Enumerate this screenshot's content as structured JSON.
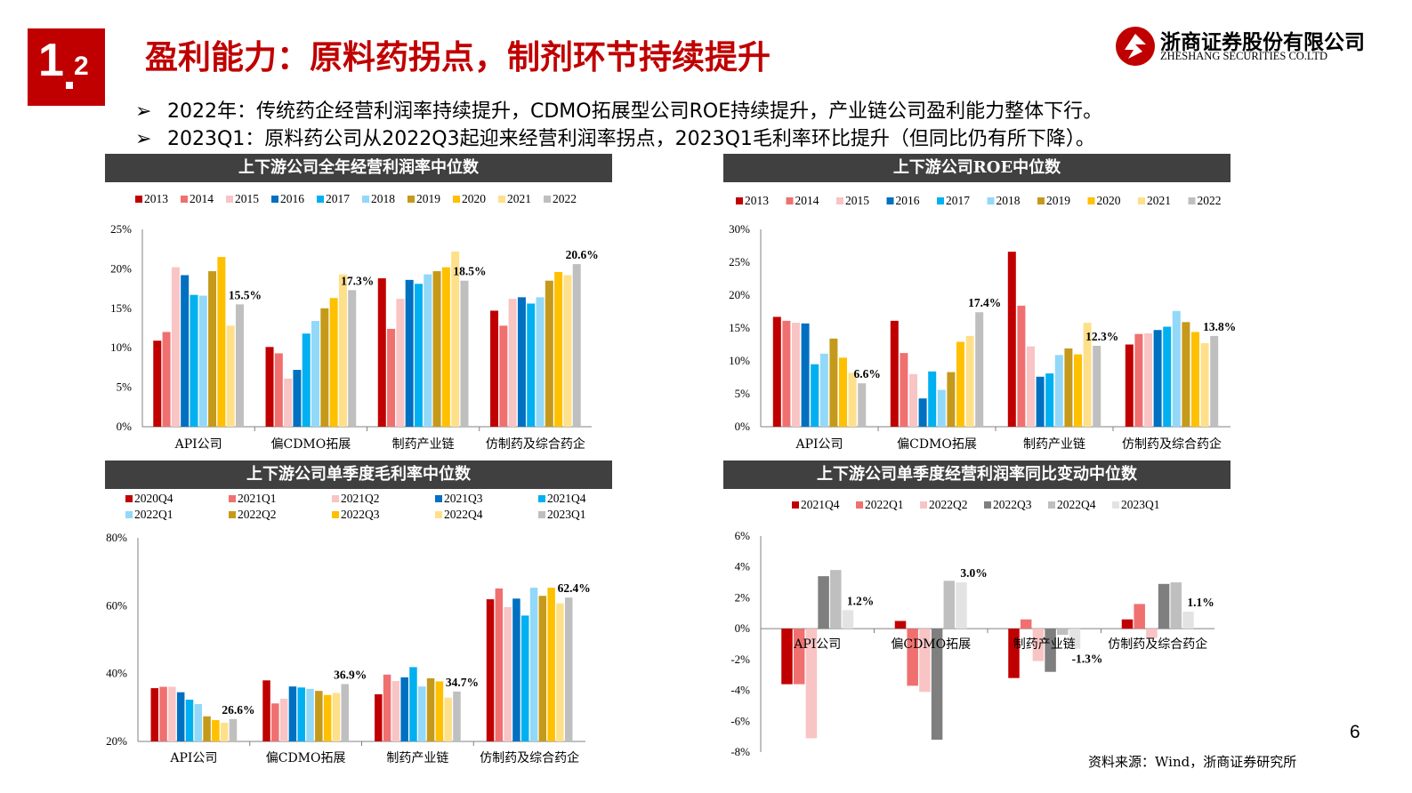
{
  "header": {
    "section_major": "1",
    "section_minor": "2",
    "title": "盈利能力：原料药拐点，制剂环节持续提升",
    "company_cn": "浙商证券股份有限公司",
    "company_en": "ZHESHANG SECURITIES CO.LTD"
  },
  "bullets": [
    "2022年：传统药企经营利润率持续提升，CDMO拓展型公司ROE持续提升，产业链公司盈利能力整体下行。",
    "2023Q1：原料药公司从2022Q3起迎来经营利润率拐点，2023Q1毛利率环比提升（但同比仍有所下降）。"
  ],
  "bullet_marker": "➢",
  "source": "资料来源：Wind，浙商证券研究所",
  "page_number": "6",
  "chart_data": [
    {
      "id": "op_margin",
      "type": "bar",
      "title": "上下游公司全年经营利润率中位数",
      "categories": [
        "API公司",
        "偏CDMO拓展",
        "制药产业链",
        "仿制药及综合药企"
      ],
      "ylim": [
        0,
        25
      ],
      "yticks": [
        0,
        5,
        10,
        15,
        20,
        25
      ],
      "ytick_labels": [
        "0%",
        "5%",
        "10%",
        "15%",
        "20%",
        "25%"
      ],
      "legend_position": "top",
      "legend_columns": 10,
      "series": [
        {
          "name": "2013",
          "color": "#c00000",
          "values": [
            10.9,
            10.1,
            18.8,
            14.7
          ]
        },
        {
          "name": "2014",
          "color": "#f07070",
          "values": [
            12.0,
            9.3,
            12.4,
            12.8
          ]
        },
        {
          "name": "2015",
          "color": "#f9c4c4",
          "values": [
            20.2,
            6.1,
            16.2,
            16.2
          ]
        },
        {
          "name": "2016",
          "color": "#0070c0",
          "values": [
            19.2,
            7.2,
            18.6,
            16.4
          ]
        },
        {
          "name": "2017",
          "color": "#00b0f0",
          "values": [
            16.7,
            11.8,
            18.1,
            15.6
          ]
        },
        {
          "name": "2018",
          "color": "#92d8f8",
          "values": [
            16.6,
            13.4,
            19.3,
            16.4
          ]
        },
        {
          "name": "2019",
          "color": "#c59a1a",
          "values": [
            19.7,
            15.0,
            19.7,
            18.5
          ]
        },
        {
          "name": "2020",
          "color": "#ffc000",
          "values": [
            21.5,
            16.3,
            20.2,
            19.6
          ]
        },
        {
          "name": "2021",
          "color": "#ffe08a",
          "values": [
            12.8,
            19.3,
            22.2,
            19.2
          ]
        },
        {
          "name": "2022",
          "color": "#bfbfbf",
          "values": [
            15.5,
            17.3,
            18.5,
            20.6
          ]
        }
      ],
      "annotations": [
        "15.5%",
        "17.3%",
        "18.5%",
        "20.6%"
      ]
    },
    {
      "id": "roe",
      "type": "bar",
      "title": "上下游公司ROE中位数",
      "categories": [
        "API公司",
        "偏CDMO拓展",
        "制药产业链",
        "仿制药及综合药企"
      ],
      "ylim": [
        0,
        30
      ],
      "yticks": [
        0,
        5,
        10,
        15,
        20,
        25,
        30
      ],
      "ytick_labels": [
        "0%",
        "5%",
        "10%",
        "15%",
        "20%",
        "25%",
        "30%"
      ],
      "legend_position": "top",
      "legend_columns": 10,
      "series": [
        {
          "name": "2013",
          "color": "#c00000",
          "values": [
            16.7,
            16.1,
            26.6,
            12.5
          ]
        },
        {
          "name": "2014",
          "color": "#f07070",
          "values": [
            16.1,
            11.2,
            18.4,
            14.1
          ]
        },
        {
          "name": "2015",
          "color": "#f9c4c4",
          "values": [
            15.8,
            8.0,
            12.2,
            14.2
          ]
        },
        {
          "name": "2016",
          "color": "#0070c0",
          "values": [
            15.7,
            4.3,
            7.6,
            14.7
          ]
        },
        {
          "name": "2017",
          "color": "#00b0f0",
          "values": [
            9.5,
            8.4,
            8.1,
            15.2
          ]
        },
        {
          "name": "2018",
          "color": "#92d8f8",
          "values": [
            11.1,
            5.6,
            10.9,
            17.6
          ]
        },
        {
          "name": "2019",
          "color": "#c59a1a",
          "values": [
            13.4,
            8.3,
            11.9,
            15.9
          ]
        },
        {
          "name": "2020",
          "color": "#ffc000",
          "values": [
            10.5,
            12.9,
            11.0,
            14.4
          ]
        },
        {
          "name": "2021",
          "color": "#ffe08a",
          "values": [
            8.2,
            13.8,
            15.8,
            12.7
          ]
        },
        {
          "name": "2022",
          "color": "#bfbfbf",
          "values": [
            6.6,
            17.4,
            12.3,
            13.8
          ]
        }
      ],
      "annotations": [
        "6.6%",
        "17.4%",
        "12.3%",
        "13.8%"
      ]
    },
    {
      "id": "gross_margin_q",
      "type": "bar",
      "title": "上下游公司单季度毛利率中位数",
      "categories": [
        "API公司",
        "偏CDMO拓展",
        "制药产业链",
        "仿制药及综合药企"
      ],
      "ylim": [
        20,
        80
      ],
      "yticks": [
        20,
        40,
        60,
        80
      ],
      "ytick_labels": [
        "20%",
        "40%",
        "60%",
        "80%"
      ],
      "legend_position": "top",
      "legend_columns": 5,
      "series": [
        {
          "name": "2020Q4",
          "color": "#c00000",
          "values": [
            35.7,
            38.0,
            33.9,
            61.9
          ]
        },
        {
          "name": "2021Q1",
          "color": "#f07070",
          "values": [
            36.1,
            31.2,
            39.7,
            65.1
          ]
        },
        {
          "name": "2021Q2",
          "color": "#f9c4c4",
          "values": [
            36.1,
            32.6,
            37.8,
            59.6
          ]
        },
        {
          "name": "2021Q3",
          "color": "#0070c0",
          "values": [
            34.5,
            36.2,
            38.9,
            62.1
          ]
        },
        {
          "name": "2021Q4",
          "color": "#00b0f0",
          "values": [
            32.3,
            35.9,
            41.9,
            57.1
          ]
        },
        {
          "name": "2022Q1",
          "color": "#92d8f8",
          "values": [
            31.0,
            35.5,
            36.2,
            65.3
          ]
        },
        {
          "name": "2022Q2",
          "color": "#c59a1a",
          "values": [
            27.4,
            34.9,
            38.6,
            62.9
          ]
        },
        {
          "name": "2022Q3",
          "color": "#ffc000",
          "values": [
            26.3,
            33.7,
            37.7,
            65.3
          ]
        },
        {
          "name": "2022Q4",
          "color": "#ffe08a",
          "values": [
            25.5,
            34.3,
            32.9,
            60.7
          ]
        },
        {
          "name": "2023Q1",
          "color": "#bfbfbf",
          "values": [
            26.6,
            36.9,
            34.7,
            62.4
          ]
        }
      ],
      "annotations": [
        "26.6%",
        "36.9%",
        "34.7%",
        "62.4%"
      ]
    },
    {
      "id": "op_margin_yoy",
      "type": "bar",
      "title": "上下游公司单季度经营利润率同比变动中位数",
      "categories": [
        "API公司",
        "偏CDMO拓展",
        "制药产业链",
        "仿制药及综合药企"
      ],
      "ylim": [
        -8,
        6
      ],
      "yticks": [
        -8,
        -6,
        -4,
        -2,
        0,
        2,
        4,
        6
      ],
      "ytick_labels": [
        "-8%",
        "-6%",
        "-4%",
        "-2%",
        "0%",
        "2%",
        "4%",
        "6%"
      ],
      "legend_position": "top",
      "legend_columns": 6,
      "series": [
        {
          "name": "2021Q4",
          "color": "#c00000",
          "values": [
            -3.6,
            0.5,
            -3.2,
            0.6
          ]
        },
        {
          "name": "2022Q1",
          "color": "#f07070",
          "values": [
            -3.6,
            -3.7,
            0.6,
            1.6
          ]
        },
        {
          "name": "2022Q2",
          "color": "#f9c4c4",
          "values": [
            -7.1,
            -4.1,
            -2.1,
            -0.6
          ]
        },
        {
          "name": "2022Q3",
          "color": "#7f7f7f",
          "values": [
            3.4,
            -7.2,
            -2.8,
            2.9
          ]
        },
        {
          "name": "2022Q4",
          "color": "#bfbfbf",
          "values": [
            3.8,
            3.1,
            -0.4,
            3.0
          ]
        },
        {
          "name": "2023Q1",
          "color": "#e3e3e3",
          "values": [
            1.2,
            3.0,
            -1.3,
            1.1
          ]
        }
      ],
      "annotations": [
        "1.2%",
        "3.0%",
        "-1.3%",
        "1.1%"
      ]
    }
  ]
}
